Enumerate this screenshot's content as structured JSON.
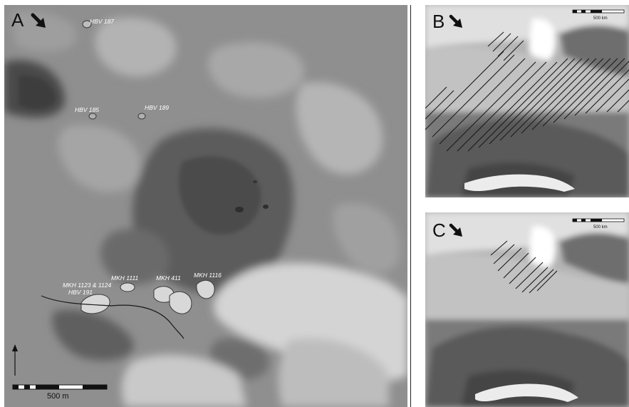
{
  "panels": {
    "a": {
      "label": "A",
      "scale_label": "500 m",
      "sites": [
        "HBV 187",
        "HBV 185",
        "HBV 189",
        "MKH 1111",
        "MKH 411",
        "MKH 1116",
        "MKH 1123 & 1124",
        "HBV 191"
      ]
    },
    "b": {
      "label": "B",
      "scale_label": "500 km"
    },
    "c": {
      "label": "C",
      "scale_label": "500 km"
    }
  }
}
